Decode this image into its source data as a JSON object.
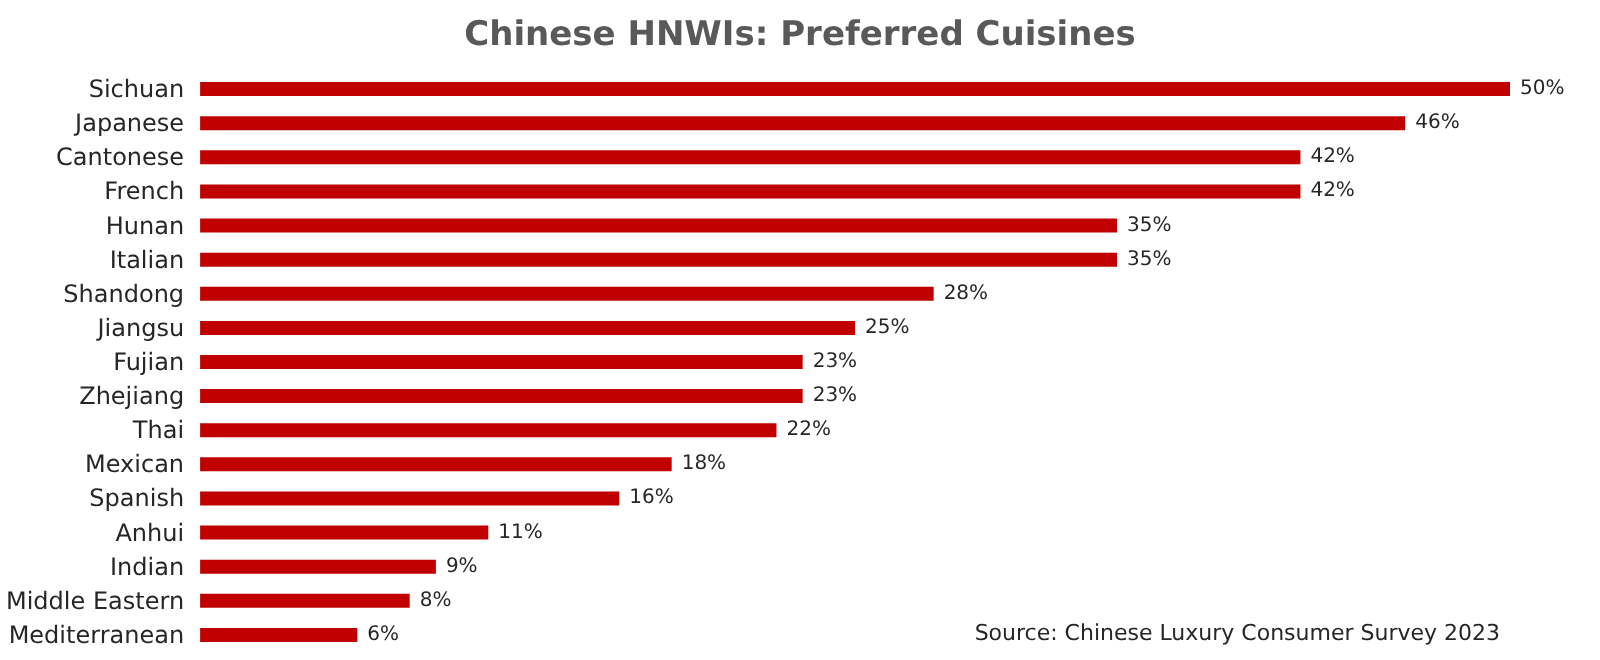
{
  "chart_data": {
    "type": "bar",
    "orientation": "horizontal",
    "title": "Chinese HNWIs: Preferred Cuisines",
    "categories": [
      "Sichuan",
      "Japanese",
      "Cantonese",
      "French",
      "Hunan",
      "Italian",
      "Shandong",
      "Jiangsu",
      "Fujian",
      "Zhejiang",
      "Thai",
      "Mexican",
      "Spanish",
      "Anhui",
      "Indian",
      "Middle Eastern",
      "Mediterranean"
    ],
    "values": [
      50,
      46,
      42,
      42,
      35,
      35,
      28,
      25,
      23,
      23,
      22,
      18,
      16,
      11,
      9,
      8,
      6
    ],
    "value_labels": [
      "50%",
      "46%",
      "42%",
      "42%",
      "35%",
      "35%",
      "28%",
      "25%",
      "23%",
      "23%",
      "22%",
      "18%",
      "16%",
      "11%",
      "9%",
      "8%",
      "6%"
    ],
    "color": "#c00000",
    "tick_labels": "y",
    "annotations": [
      "Source: Chinese Luxury Consumer Survey 2023"
    ]
  }
}
